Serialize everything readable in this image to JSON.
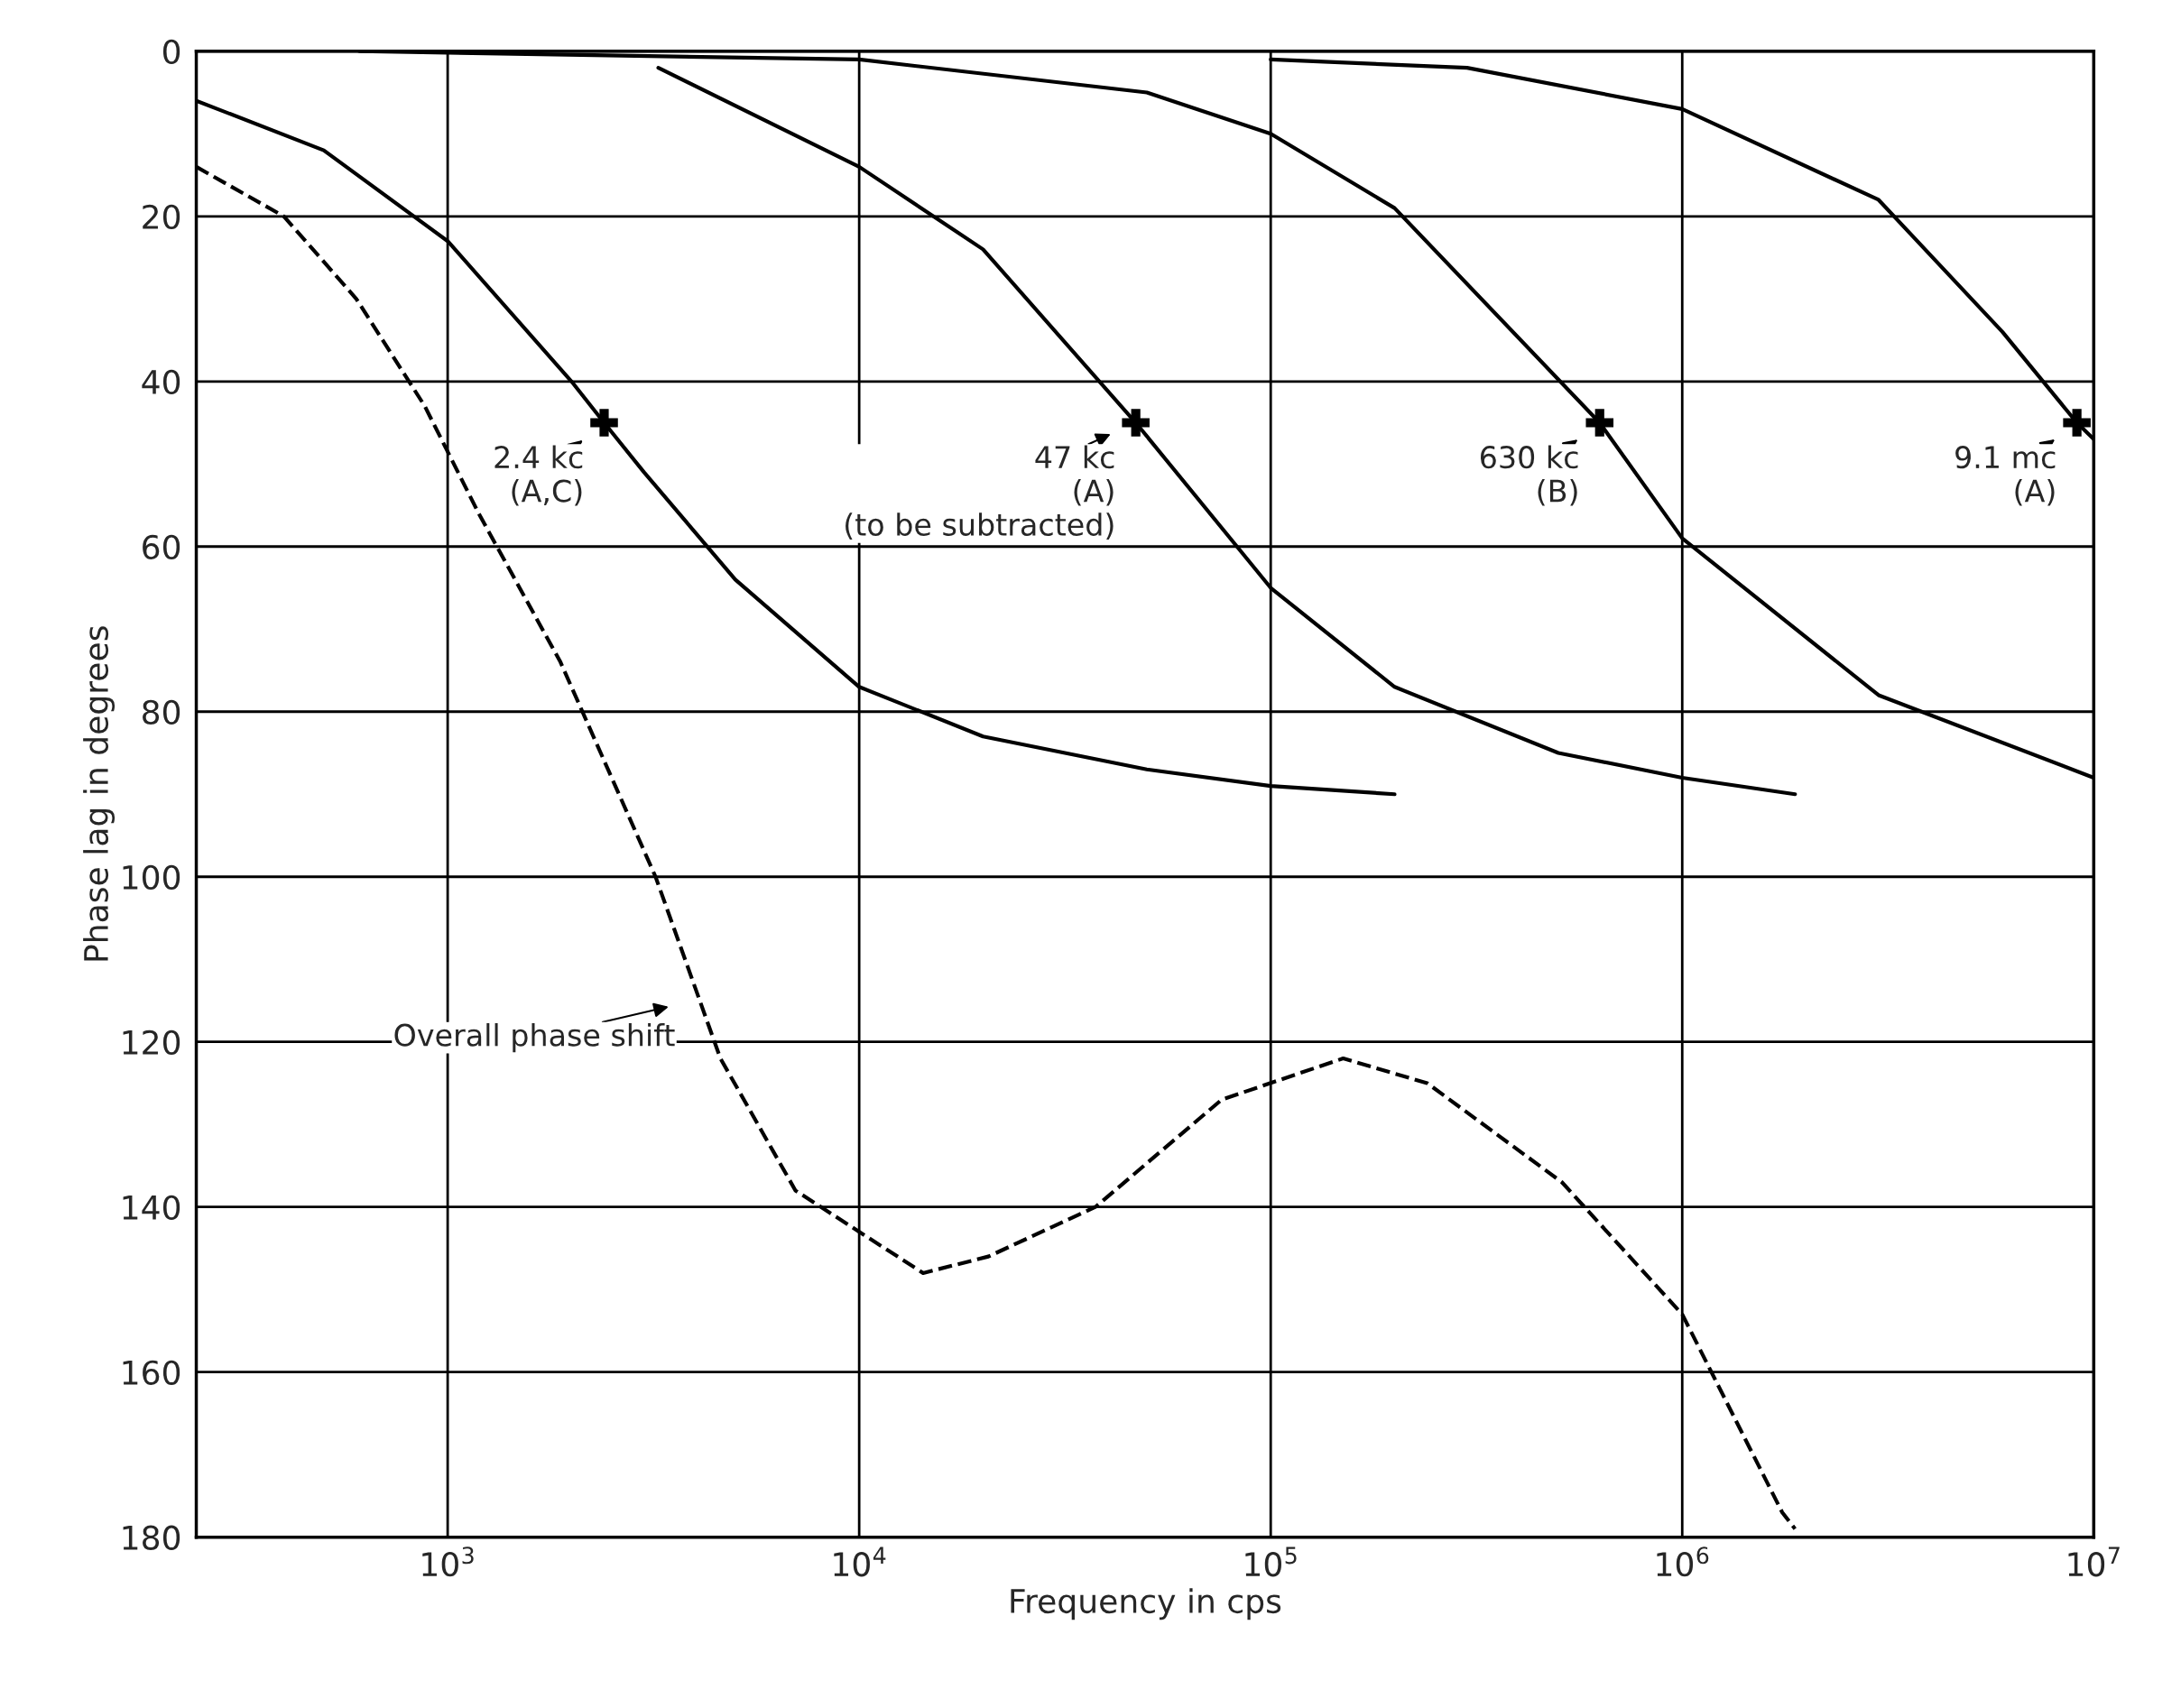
{
  "chart_data": {
    "type": "line",
    "xlabel": "Frequency in cps",
    "ylabel": "Phase lag in degrees",
    "log": "x",
    "grid": true,
    "xlim": [
      245,
      10000000
    ],
    "ylim": [
      180,
      0
    ],
    "xticks": [
      {
        "value": 1000,
        "label": "10$^{3}$"
      },
      {
        "value": 10000,
        "label": "10$^{4}$"
      },
      {
        "value": 100000,
        "label": "10$^{5}$"
      },
      {
        "value": 1000000,
        "label": "10$^{6}$"
      },
      {
        "value": 10000000,
        "label": "10$^{7}$"
      }
    ],
    "yticks": [
      0,
      20,
      40,
      60,
      80,
      100,
      120,
      140,
      160,
      180
    ],
    "series": [
      {
        "color": "#000000",
        "line_style": "solid",
        "x": [
          245,
          500,
          1000,
          2000,
          2400,
          3000,
          5000,
          10000,
          20000,
          50000,
          100000,
          200000
        ],
        "values": [
          6,
          12,
          23,
          40,
          45,
          51,
          64,
          77,
          83,
          87,
          89,
          90
        ]
      },
      {
        "color": "#000000",
        "line_style": "solid",
        "x": [
          3250,
          10000,
          20000,
          47000,
          100000,
          200000,
          500000,
          1000000,
          1880000
        ],
        "values": [
          2,
          14,
          24,
          45,
          65,
          77,
          85,
          88,
          90
        ]
      },
      {
        "color": "#000000",
        "line_style": "solid",
        "x": [
          610,
          10000,
          50000,
          100000,
          200000,
          630000,
          1000000,
          3000000,
          10000000
        ],
        "values": [
          0,
          1,
          5,
          10,
          19,
          45,
          59,
          78,
          88
        ]
      },
      {
        "color": "#000000",
        "line_style": "solid",
        "x": [
          100000,
          300000,
          1000000,
          3000000,
          6000000,
          9100000,
          10000000
        ],
        "values": [
          1,
          2,
          7,
          18,
          34,
          45,
          47
        ]
      },
      {
        "color": "#000000",
        "line_style": "dashed",
        "x": [
          245,
          400,
          600,
          880,
          1190,
          1880,
          3200,
          4600,
          7000,
          10000,
          14300,
          20600,
          37500,
          76000,
          150000,
          240000,
          510000,
          1000000,
          1750000,
          1880000
        ],
        "values": [
          14,
          20,
          30,
          43,
          56,
          74,
          100,
          122,
          138,
          143,
          148,
          146,
          140,
          127,
          122,
          125,
          137,
          153,
          177,
          179
        ]
      },
      {
        "type": "scatter",
        "color": "#000000",
        "marker": "cross",
        "x": [
          2400,
          47000,
          630000,
          9100000
        ],
        "values": [
          45,
          45,
          45,
          45
        ]
      }
    ],
    "annotations": [
      {
        "text": "2.4 kc\n(A,C)",
        "x": 2400,
        "y": 45
      },
      {
        "text": "47 kc\n(A)\n(to be subtracted)",
        "x": 47000,
        "y": 45
      },
      {
        "text": "630 kc\n(B)",
        "x": 630000,
        "y": 45
      },
      {
        "text": "9.1 mc\n(A)",
        "x": 9100000,
        "y": 45
      },
      {
        "text": "Overall phase shift",
        "x": 4000,
        "y": 115
      }
    ]
  }
}
